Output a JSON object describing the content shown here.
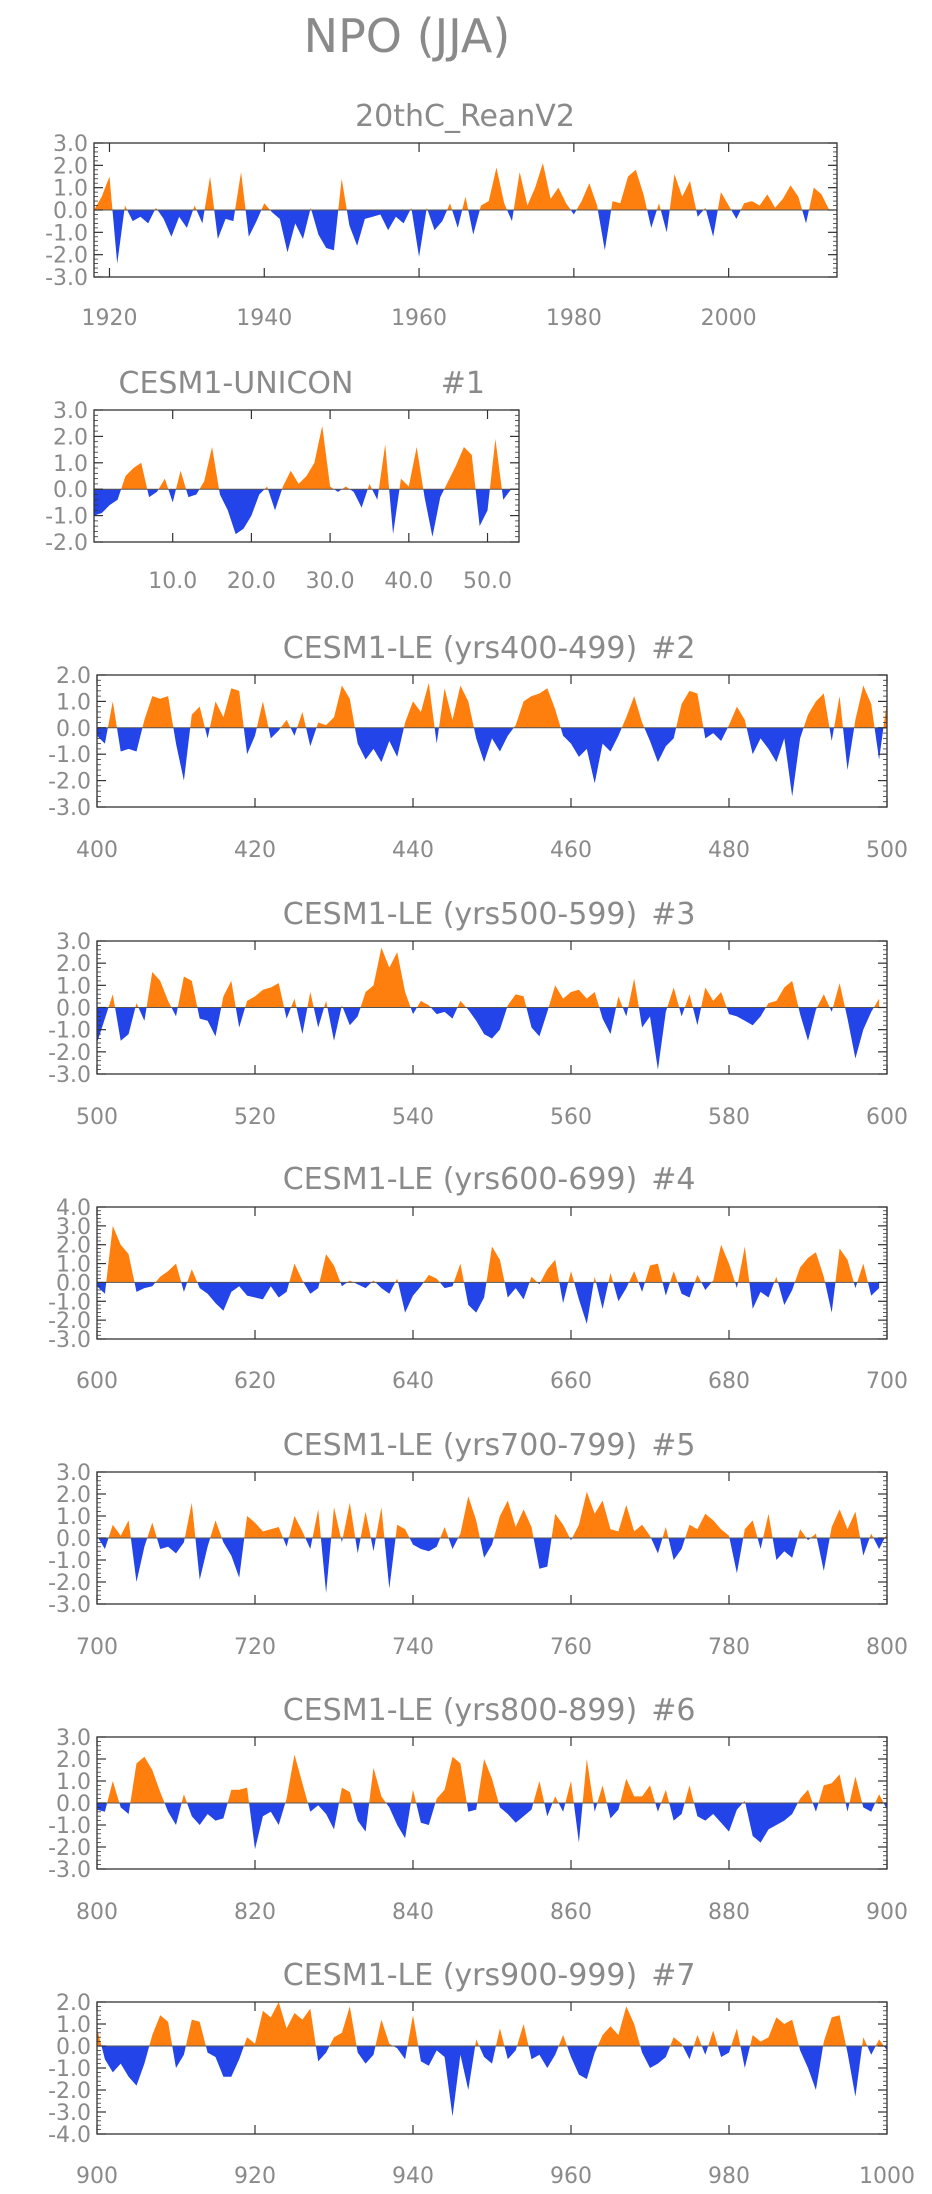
{
  "figure_title": "NPO (JJA)",
  "colors": {
    "positive": "#ff7f0e",
    "negative": "#2244e8",
    "frame": "#333333",
    "text": "#8a8a8a"
  },
  "chart_data": [
    {
      "type": "area",
      "title": "20thC_ReanV2",
      "xlim": [
        1918,
        2014
      ],
      "ylim": [
        -3,
        3
      ],
      "yticks": [
        "3.0",
        "2.0",
        "1.0",
        "0.0",
        "-1.0",
        "-2.0",
        "-3.0"
      ],
      "ytick_values": [
        3,
        2,
        1,
        0,
        -1,
        -2,
        -3
      ],
      "xticks": [
        "1920",
        "1940",
        "1960",
        "1980",
        "2000"
      ],
      "xtick_values": [
        1920,
        1940,
        1960,
        1980,
        2000
      ],
      "x_start": 1918,
      "x_step": 1,
      "values": [
        0,
        0.6,
        1.5,
        -2.4,
        0.2,
        -0.5,
        -0.3,
        -0.6,
        0.1,
        -0.4,
        -1.2,
        -0.3,
        -0.8,
        0.2,
        -0.6,
        1.5,
        -1.3,
        -0.4,
        -0.5,
        1.7,
        -1.2,
        -0.5,
        0.3,
        -0.1,
        -0.4,
        -1.9,
        -0.6,
        -1.3,
        0.1,
        -1.1,
        -1.7,
        -1.8,
        1.4,
        -0.7,
        -1.6,
        -0.4,
        -0.3,
        -0.2,
        -0.9,
        -0.3,
        -0.6,
        0.1,
        -2.1,
        0.1,
        -0.9,
        -0.5,
        0.3,
        -0.8,
        0.6,
        -1.1,
        0.2,
        0.4,
        1.9,
        0.3,
        -0.5,
        1.7,
        0.2,
        1.0,
        2.1,
        0.5,
        1.0,
        0.3,
        -0.2,
        0.4,
        1.2,
        0.2,
        -1.8,
        0.4,
        0.3,
        1.5,
        1.8,
        0.7,
        -0.8,
        0.3,
        -1.0,
        1.6,
        0.6,
        1.3,
        -0.3,
        0.1,
        -1.2,
        0.8,
        0.2,
        -0.4,
        0.3,
        0.4,
        0.2,
        0.7,
        0.1,
        0.5,
        1.1,
        0.6,
        -0.6,
        1.0,
        0.7,
        0
      ]
    },
    {
      "type": "area",
      "title": "CESM1-UNICON",
      "member": "#1",
      "xlim": [
        0,
        54
      ],
      "ylim": [
        -2,
        3
      ],
      "yticks": [
        "3.0",
        "2.0",
        "1.0",
        "0.0",
        "-1.0",
        "-2.0"
      ],
      "ytick_values": [
        3,
        2,
        1,
        0,
        -1,
        -2
      ],
      "xticks": [
        "10.0",
        "20.0",
        "30.0",
        "40.0",
        "50.0"
      ],
      "xtick_values": [
        10,
        20,
        30,
        40,
        50
      ],
      "x_start": 0,
      "x_step": 1,
      "values": [
        -1.0,
        -0.9,
        -0.6,
        -0.4,
        0.5,
        0.8,
        1.0,
        -0.3,
        -0.1,
        0.4,
        -0.5,
        0.7,
        -0.3,
        -0.2,
        0.3,
        1.6,
        -0.2,
        -0.8,
        -1.7,
        -1.5,
        -1.0,
        -0.2,
        0.1,
        -0.8,
        0.1,
        0.7,
        0.2,
        0.5,
        1.0,
        2.4,
        0.1,
        -0.1,
        0.1,
        -0.1,
        -0.7,
        0.2,
        -0.4,
        1.7,
        -1.7,
        0.4,
        0.1,
        1.6,
        -0.3,
        -1.8,
        -0.3,
        0.3,
        0.9,
        1.6,
        1.3,
        -1.4,
        -0.8,
        1.9,
        -0.4,
        0
      ]
    },
    {
      "type": "area",
      "title": "CESM1-LE (yrs400-499)",
      "member": "#2",
      "xlim": [
        400,
        500
      ],
      "ylim": [
        -3,
        2
      ],
      "yticks": [
        "2.0",
        "1.0",
        "0.0",
        "-1.0",
        "-2.0",
        "-3.0"
      ],
      "ytick_values": [
        2,
        1,
        0,
        -1,
        -2,
        -3
      ],
      "xticks": [
        "400",
        "420",
        "440",
        "460",
        "480",
        "500"
      ],
      "xtick_values": [
        400,
        420,
        440,
        460,
        480,
        500
      ],
      "x_start": 400,
      "x_step": 1,
      "values": [
        -0.3,
        -0.6,
        1.0,
        -0.9,
        -0.8,
        -0.9,
        0.3,
        1.2,
        1.1,
        1.2,
        -0.6,
        -2.0,
        0.5,
        0.8,
        -0.4,
        1.0,
        0.4,
        1.5,
        1.4,
        -1.0,
        -0.3,
        1.0,
        -0.4,
        -0.1,
        0.3,
        -0.3,
        0.6,
        -0.7,
        0.2,
        0.1,
        0.4,
        1.6,
        1.1,
        -0.6,
        -1.2,
        -0.8,
        -1.3,
        -0.5,
        -1.1,
        0.2,
        1.0,
        0.6,
        1.7,
        -0.6,
        1.5,
        0.3,
        1.6,
        1.0,
        -0.4,
        -1.3,
        -0.4,
        -0.9,
        -0.3,
        0.1,
        1.0,
        1.2,
        1.3,
        1.5,
        0.7,
        -0.3,
        -0.6,
        -1.1,
        -0.8,
        -2.1,
        -0.6,
        -0.9,
        -0.3,
        0.4,
        1.2,
        0.2,
        -0.5,
        -1.3,
        -0.7,
        -0.4,
        0.9,
        1.4,
        1.3,
        -0.4,
        -0.2,
        -0.5,
        0.1,
        0.8,
        0.3,
        -1.0,
        -0.4,
        -0.8,
        -1.3,
        -0.4,
        -2.6,
        -0.4,
        0.5,
        1.0,
        1.3,
        -0.5,
        1.2,
        -1.6,
        0.3,
        1.6,
        0.9,
        -1.2,
        1.0
      ]
    },
    {
      "type": "area",
      "title": "CESM1-LE (yrs500-599)",
      "member": "#3",
      "xlim": [
        500,
        600
      ],
      "ylim": [
        -3,
        3
      ],
      "yticks": [
        "3.0",
        "2.0",
        "1.0",
        "0.0",
        "-1.0",
        "-2.0",
        "-3.0"
      ],
      "ytick_values": [
        3,
        2,
        1,
        0,
        -1,
        -2,
        -3
      ],
      "xticks": [
        "500",
        "520",
        "540",
        "560",
        "580",
        "600"
      ],
      "xtick_values": [
        500,
        520,
        540,
        560,
        580,
        600
      ],
      "x_start": 500,
      "x_step": 1,
      "values": [
        -1.6,
        -0.5,
        0.6,
        -1.5,
        -1.2,
        0.2,
        -0.6,
        1.6,
        1.2,
        0.3,
        -0.4,
        1.4,
        1.2,
        -0.5,
        -0.6,
        -1.3,
        0.5,
        1.2,
        -0.9,
        0.3,
        0.5,
        0.8,
        0.9,
        1.1,
        -0.5,
        0.4,
        -1.2,
        0.7,
        -0.9,
        0.3,
        -1.5,
        0.1,
        -0.8,
        -0.4,
        0.7,
        1.0,
        2.7,
        1.8,
        2.5,
        0.7,
        -0.3,
        0.3,
        0.1,
        -0.3,
        -0.2,
        -0.5,
        0.3,
        -0.1,
        -0.6,
        -1.2,
        -1.4,
        -1.0,
        0.1,
        0.6,
        0.5,
        -0.9,
        -1.3,
        -0.2,
        1.0,
        0.4,
        0.7,
        0.8,
        0.4,
        0.7,
        -0.5,
        -1.2,
        0.5,
        -0.4,
        1.3,
        -0.9,
        -0.4,
        -2.8,
        -0.2,
        0.9,
        -0.4,
        0.6,
        -0.8,
        0.9,
        0.3,
        0.7,
        -0.3,
        -0.4,
        -0.6,
        -0.8,
        -0.4,
        0.2,
        0.3,
        0.9,
        1.2,
        -0.3,
        -1.5,
        -0.1,
        0.6,
        -0.2,
        1.1,
        -0.5,
        -2.3,
        -1.0,
        -0.2,
        0.4
      ]
    },
    {
      "type": "area",
      "title": "CESM1-LE (yrs600-699)",
      "member": "#4",
      "xlim": [
        600,
        700
      ],
      "ylim": [
        -3,
        4
      ],
      "yticks": [
        "4.0",
        "3.0",
        "2.0",
        "1.0",
        "0.0",
        "-1.0",
        "-2.0",
        "-3.0"
      ],
      "ytick_values": [
        4,
        3,
        2,
        1,
        0,
        -1,
        -2,
        -3
      ],
      "xticks": [
        "600",
        "620",
        "640",
        "660",
        "680",
        "700"
      ],
      "xtick_values": [
        600,
        620,
        640,
        660,
        680,
        700
      ],
      "x_start": 600,
      "x_step": 1,
      "values": [
        -0.2,
        -0.6,
        3.0,
        2.0,
        1.5,
        -0.5,
        -0.3,
        -0.2,
        0.3,
        0.6,
        1.0,
        -0.5,
        0.7,
        -0.3,
        -0.6,
        -1.1,
        -1.5,
        -0.5,
        -0.2,
        -0.7,
        -0.8,
        -0.9,
        -0.2,
        -0.8,
        -0.5,
        1.0,
        0.1,
        -0.6,
        -0.3,
        1.5,
        0.9,
        -0.2,
        0.1,
        -0.1,
        -0.3,
        0.1,
        -0.3,
        -0.6,
        0.2,
        -1.6,
        -0.7,
        -0.2,
        0.4,
        0.2,
        -0.3,
        -0.2,
        1.0,
        -1.2,
        -1.6,
        -0.8,
        1.9,
        1.2,
        -0.8,
        -0.3,
        -0.9,
        0.3,
        -0.1,
        0.7,
        1.2,
        -1.1,
        0.6,
        -0.9,
        -2.2,
        0.3,
        -1.4,
        0.5,
        -1.0,
        -0.3,
        0.6,
        -0.5,
        0.9,
        1.0,
        -0.7,
        0.6,
        -0.6,
        -0.8,
        0.4,
        -0.4,
        0.1,
        2.0,
        1.0,
        -0.3,
        1.9,
        -1.4,
        -0.5,
        -0.8,
        0.3,
        -1.2,
        -0.4,
        0.8,
        1.3,
        1.6,
        0.3,
        -1.6,
        1.8,
        1.2,
        -0.3,
        1.0,
        -0.7,
        -0.3
      ]
    },
    {
      "type": "area",
      "title": "CESM1-LE (yrs700-799)",
      "member": "#5",
      "xlim": [
        700,
        800
      ],
      "ylim": [
        -3,
        3
      ],
      "yticks": [
        "3.0",
        "2.0",
        "1.0",
        "0.0",
        "-1.0",
        "-2.0",
        "-3.0"
      ],
      "ytick_values": [
        3,
        2,
        1,
        0,
        -1,
        -2,
        -3
      ],
      "xticks": [
        "700",
        "720",
        "740",
        "760",
        "780",
        "800"
      ],
      "xtick_values": [
        700,
        720,
        740,
        760,
        780,
        800
      ],
      "x_start": 700,
      "x_step": 1,
      "values": [
        0.1,
        -0.5,
        0.6,
        0.1,
        0.8,
        -2.0,
        -0.4,
        0.7,
        -0.5,
        -0.4,
        -0.7,
        -0.2,
        1.6,
        -1.9,
        -0.4,
        0.8,
        -0.2,
        -0.8,
        -1.8,
        1.0,
        0.7,
        0.3,
        0.4,
        0.5,
        -0.4,
        1.0,
        0.3,
        -0.5,
        1.3,
        -2.5,
        1.4,
        -0.2,
        1.6,
        -0.7,
        1.2,
        -0.6,
        1.4,
        -2.3,
        0.6,
        0.4,
        -0.3,
        -0.5,
        -0.6,
        -0.4,
        0.5,
        -0.5,
        0.2,
        1.9,
        0.8,
        -0.9,
        -0.3,
        1.0,
        1.7,
        0.5,
        1.3,
        0.5,
        -1.4,
        -1.3,
        1.1,
        0.6,
        -0.1,
        0.6,
        2.1,
        1.1,
        1.7,
        0.4,
        0.3,
        1.5,
        0.3,
        0.6,
        0.1,
        -0.7,
        0.5,
        -1.0,
        -0.5,
        0.6,
        0.4,
        1.1,
        0.8,
        0.4,
        0.1,
        -1.6,
        0.4,
        0.8,
        -0.5,
        1.1,
        -1.0,
        -0.6,
        -0.9,
        0.4,
        -0.1,
        0.2,
        -1.5,
        0.5,
        1.3,
        0.4,
        1.2,
        -0.8,
        0.2,
        -0.5,
        0.2
      ]
    },
    {
      "type": "area",
      "title": "CESM1-LE (yrs800-899)",
      "member": "#6",
      "xlim": [
        800,
        900
      ],
      "ylim": [
        -3,
        3
      ],
      "yticks": [
        "3.0",
        "2.0",
        "1.0",
        "0.0",
        "-1.0",
        "-2.0",
        "-3.0"
      ],
      "ytick_values": [
        3,
        2,
        1,
        0,
        -1,
        -2,
        -3
      ],
      "xticks": [
        "800",
        "820",
        "840",
        "860",
        "880",
        "900"
      ],
      "xtick_values": [
        800,
        820,
        840,
        860,
        880,
        900
      ],
      "x_start": 800,
      "x_step": 1,
      "values": [
        -0.3,
        -0.4,
        1.0,
        -0.2,
        -0.5,
        1.8,
        2.1,
        1.5,
        0.5,
        -0.4,
        -1.0,
        0.4,
        -0.6,
        -1.0,
        -0.5,
        -0.8,
        -0.7,
        0.6,
        0.6,
        0.7,
        -2.1,
        -0.6,
        -0.4,
        -1.0,
        0.2,
        2.2,
        0.9,
        -0.4,
        -0.1,
        -0.5,
        -1.2,
        0.7,
        0.5,
        -0.8,
        -1.3,
        1.6,
        0.3,
        -0.2,
        -1.0,
        -1.6,
        0.6,
        -0.9,
        -1.0,
        0.2,
        0.6,
        2.1,
        1.8,
        -0.4,
        -0.3,
        2.0,
        1.1,
        -0.2,
        -0.5,
        -0.9,
        -0.6,
        -0.3,
        1.0,
        -0.6,
        0.3,
        -0.4,
        1.0,
        -1.8,
        2.0,
        -0.4,
        0.8,
        -0.7,
        -0.3,
        1.1,
        0.3,
        0.3,
        0.8,
        -0.4,
        0.6,
        -0.8,
        -0.5,
        0.8,
        -0.6,
        -0.8,
        -0.5,
        -0.9,
        -1.3,
        -0.3,
        0.1,
        -1.5,
        -1.8,
        -1.2,
        -1.0,
        -0.8,
        -0.5,
        0.2,
        0.6,
        -0.4,
        0.8,
        0.9,
        1.3,
        -0.4,
        1.2,
        -0.2,
        -0.4,
        0.4,
        -0.3
      ]
    },
    {
      "type": "area",
      "title": "CESM1-LE (yrs900-999)",
      "member": "#7",
      "xlim": [
        900,
        1000
      ],
      "ylim": [
        -4,
        2
      ],
      "yticks": [
        "2.0",
        "1.0",
        "0.0",
        "-1.0",
        "-2.0",
        "-3.0",
        "-4.0"
      ],
      "ytick_values": [
        2,
        1,
        0,
        -1,
        -2,
        -3,
        -4
      ],
      "xticks": [
        "900",
        "920",
        "940",
        "960",
        "980",
        "1000"
      ],
      "xtick_values": [
        900,
        920,
        940,
        960,
        980,
        1000
      ],
      "x_start": 900,
      "x_step": 1,
      "values": [
        0.8,
        -0.6,
        -1.2,
        -0.8,
        -1.4,
        -1.8,
        -0.8,
        0.5,
        1.4,
        1.1,
        -1.0,
        -0.4,
        1.2,
        1.1,
        -0.3,
        -0.5,
        -1.4,
        -1.4,
        -0.6,
        0.4,
        0.1,
        1.6,
        1.3,
        2.0,
        0.8,
        1.5,
        1.2,
        1.7,
        -0.7,
        -0.3,
        0.4,
        0.6,
        1.8,
        -0.3,
        -0.8,
        -0.4,
        1.2,
        0.1,
        -0.1,
        -0.6,
        1.4,
        -0.7,
        -0.9,
        -0.2,
        -0.5,
        -3.2,
        -0.4,
        -2.0,
        0.3,
        -0.5,
        -0.8,
        0.8,
        -0.6,
        -0.2,
        1.0,
        -0.6,
        -0.4,
        -1.0,
        -0.4,
        0.5,
        -0.5,
        -1.3,
        -1.5,
        -0.3,
        0.5,
        0.9,
        0.5,
        1.8,
        1.0,
        -0.3,
        -1.0,
        -0.8,
        -0.5,
        0.4,
        0.1,
        -0.6,
        0.5,
        -0.4,
        0.7,
        -0.5,
        -0.3,
        0.8,
        -1.0,
        0.5,
        0.2,
        0.4,
        1.3,
        1.0,
        1.2,
        -0.2,
        -1.0,
        -2.0,
        0.2,
        1.3,
        1.4,
        -0.3,
        -2.3,
        0.4,
        -0.4,
        0.3,
        -0.2
      ]
    }
  ]
}
